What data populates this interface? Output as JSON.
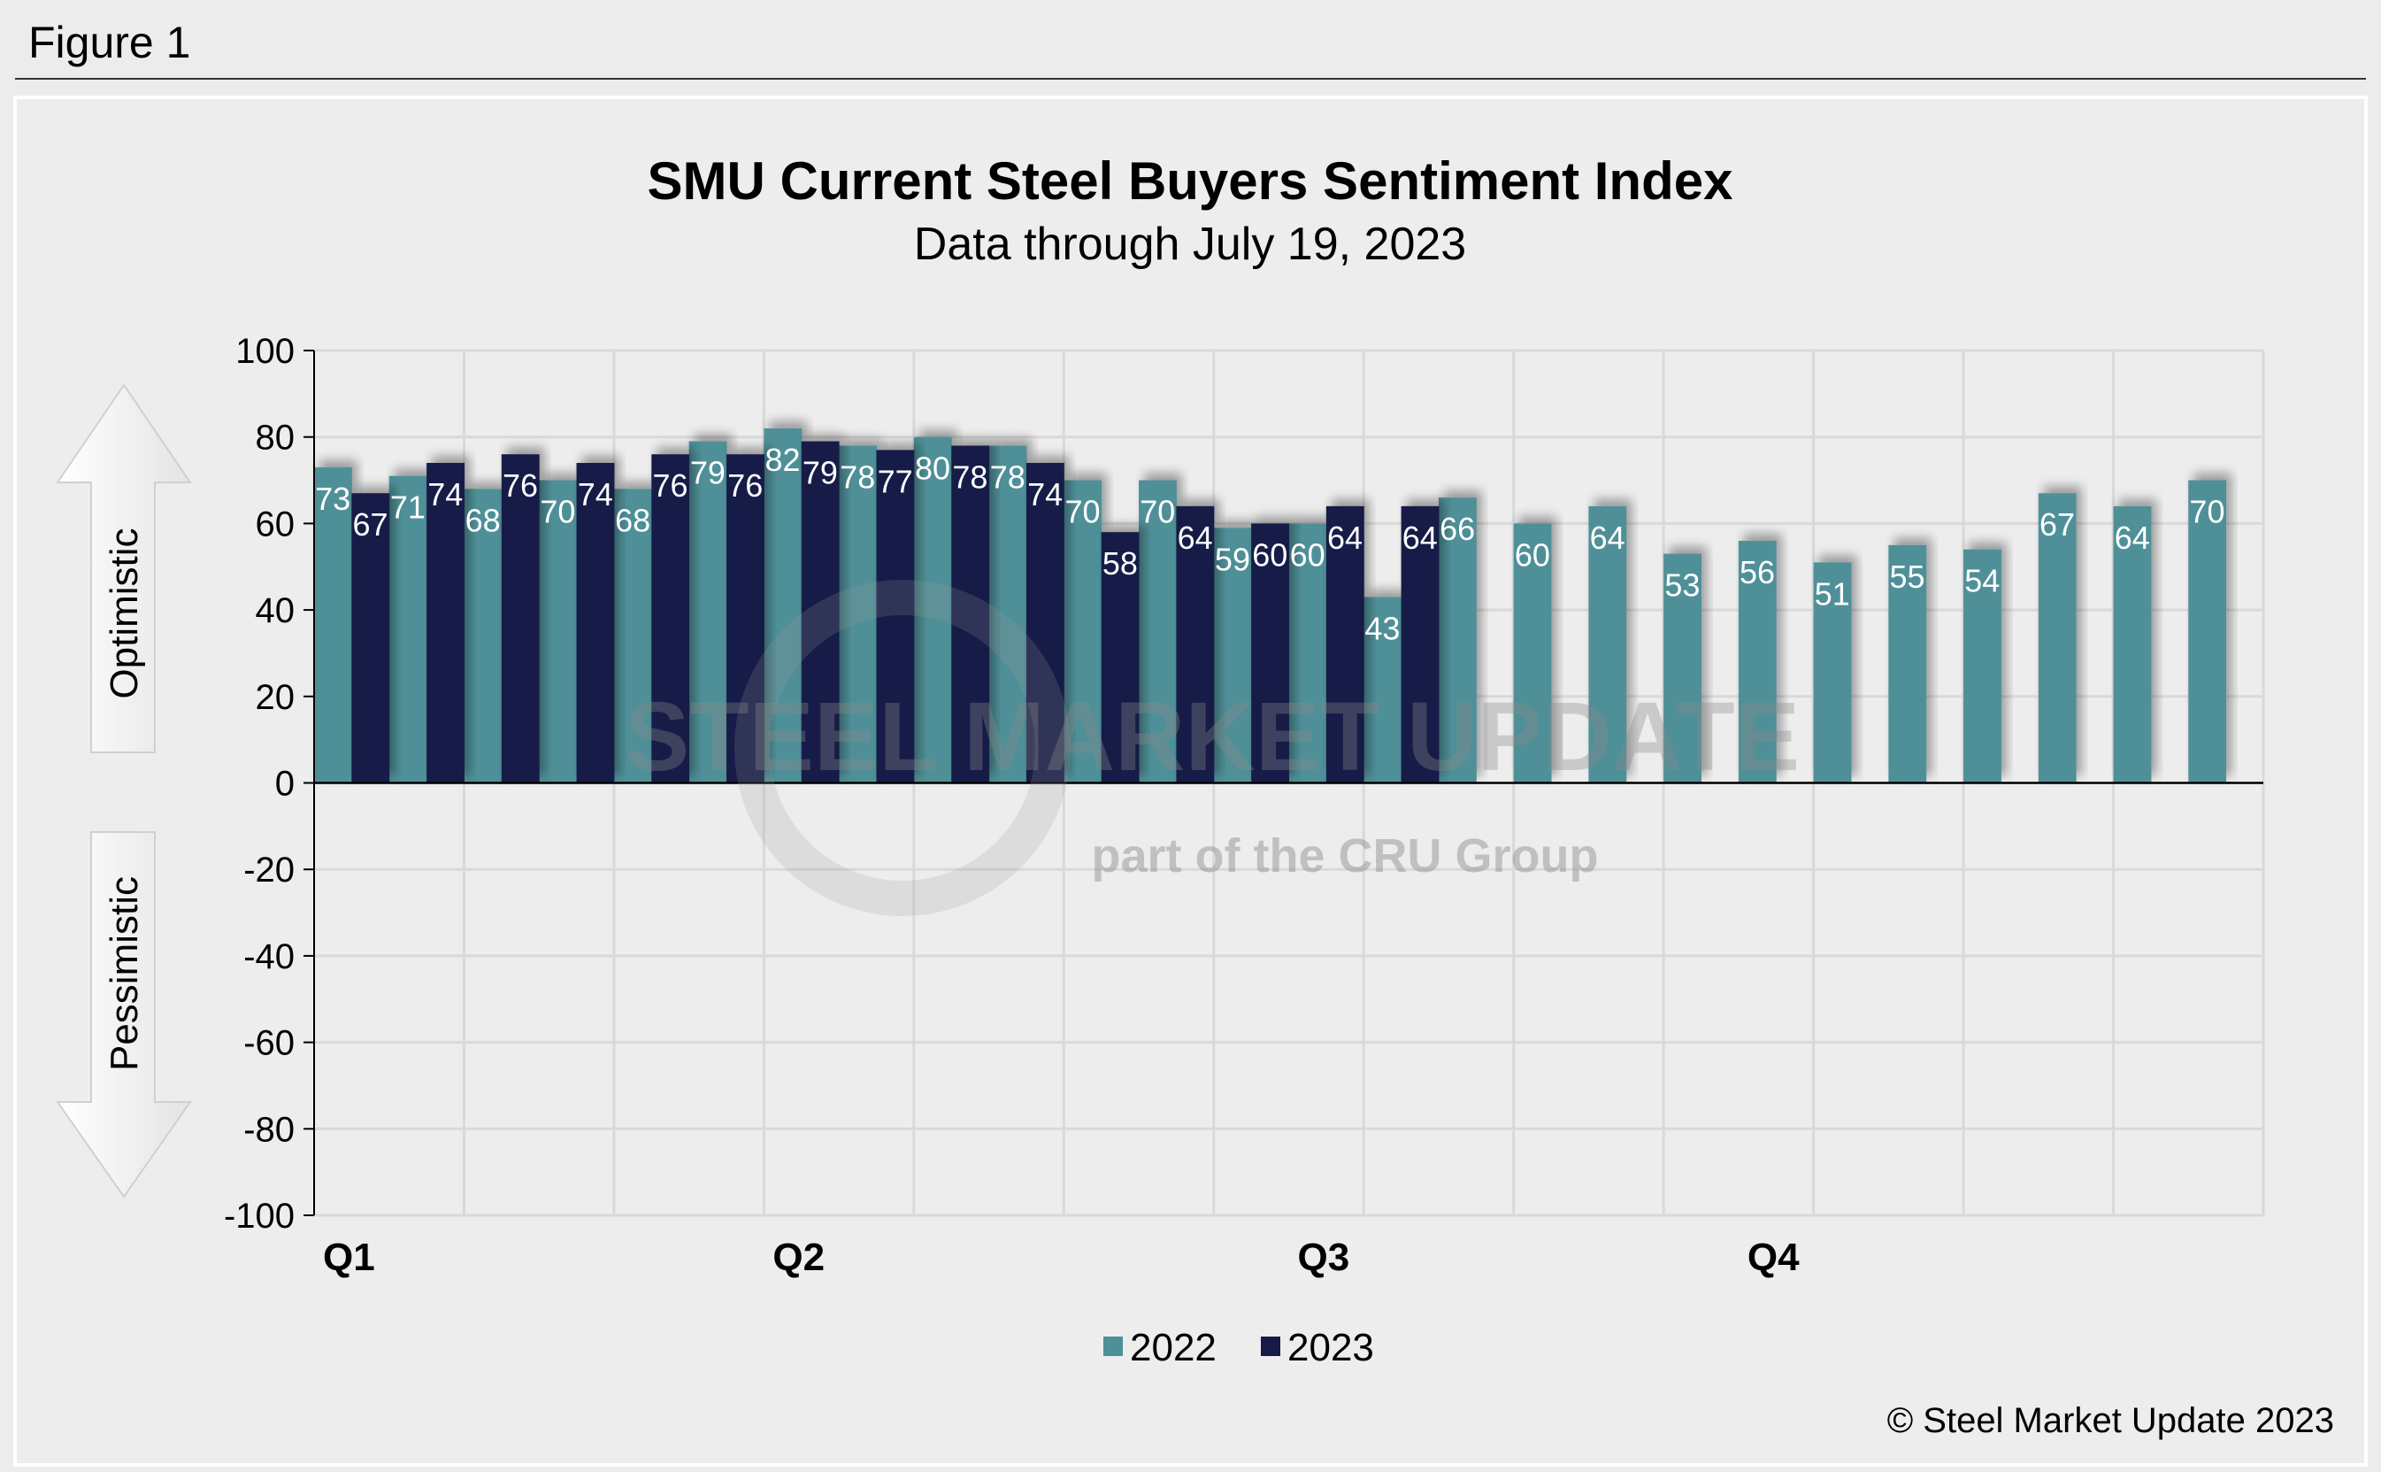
{
  "figure_label": "Figure 1",
  "copyright": "© Steel Market Update 2023",
  "watermark": {
    "line1": "STEEL MARKET UPDATE",
    "line2": "part of the CRU Group"
  },
  "colors": {
    "series_2022": "#4f9098",
    "series_2023": "#151a47",
    "background": "#ececec",
    "grid": "#d9d9d9"
  },
  "side_labels": {
    "up": "Optimistic",
    "down": "Pessimistic"
  },
  "chart_data": {
    "type": "bar",
    "title": "SMU Current Steel Buyers Sentiment Index",
    "subtitle": "Data through July 19, 2023",
    "xlabel": "",
    "ylabel": "",
    "ylim": [
      -100,
      100
    ],
    "yticks": [
      100,
      80,
      60,
      40,
      20,
      0,
      -20,
      -40,
      -60,
      -80,
      -100
    ],
    "grid": true,
    "legend": "bottom",
    "quarter_labels": [
      {
        "label": "Q1",
        "period": 1
      },
      {
        "label": "Q2",
        "period": 7
      },
      {
        "label": "Q3",
        "period": 14
      },
      {
        "label": "Q4",
        "period": 20
      }
    ],
    "series": [
      {
        "name": "2022",
        "values": [
          73,
          71,
          68,
          70,
          68,
          79,
          82,
          78,
          80,
          78,
          70,
          70,
          59,
          60,
          43,
          66,
          60,
          64,
          53,
          56,
          51,
          55,
          54,
          67,
          64,
          70
        ]
      },
      {
        "name": "2023",
        "values": [
          67,
          74,
          76,
          74,
          76,
          76,
          79,
          77,
          78,
          74,
          58,
          64,
          60,
          64,
          64,
          null,
          null,
          null,
          null,
          null,
          null,
          null,
          null,
          null,
          null,
          null
        ]
      }
    ]
  }
}
